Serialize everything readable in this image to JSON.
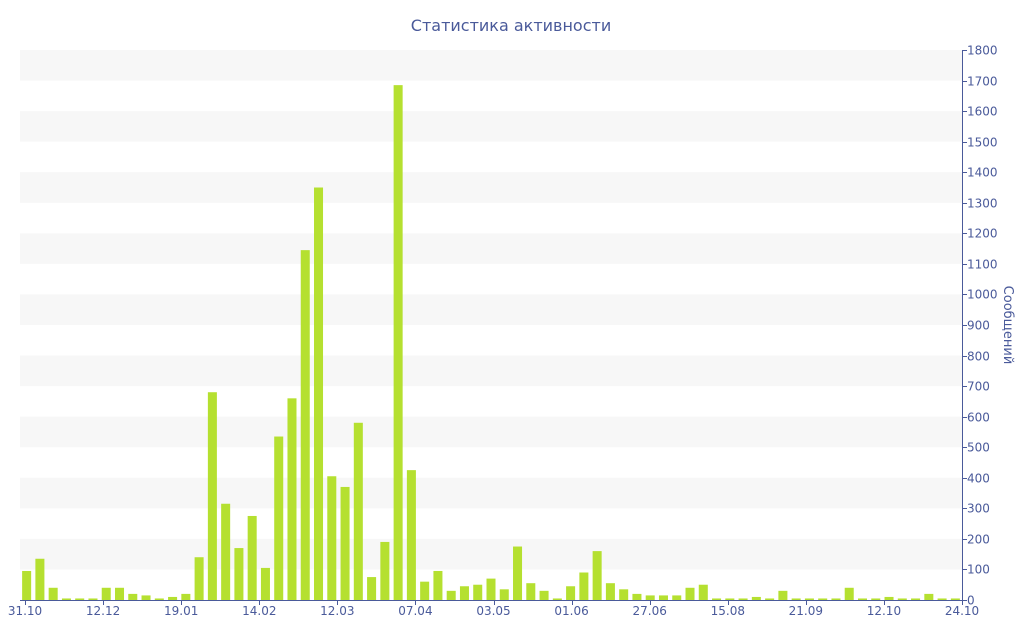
{
  "chart_data": {
    "type": "bar",
    "title": "Статистика активности",
    "ylabel": "Сообщений",
    "xlabel": "",
    "ylim": [
      0,
      1800
    ],
    "yticks": [
      0,
      100,
      200,
      300,
      400,
      500,
      600,
      700,
      800,
      900,
      1000,
      1100,
      1200,
      1300,
      1400,
      1500,
      1600,
      1700,
      1800
    ],
    "y_axis_position": "right",
    "grid": "alternating-bands",
    "xtick_labels": [
      "31.10",
      "12.12",
      "19.01",
      "14.02",
      "12.03",
      "07.04",
      "03.05",
      "01.06",
      "27.06",
      "15.08",
      "21.09",
      "12.10",
      "24.10"
    ],
    "bar_color": "#b5e030",
    "band_color": "#f7f7f7",
    "axis_color": "#4a5a9a",
    "values": [
      95,
      135,
      40,
      5,
      5,
      5,
      40,
      40,
      20,
      15,
      5,
      10,
      20,
      140,
      680,
      315,
      170,
      275,
      105,
      535,
      660,
      1145,
      1350,
      405,
      370,
      580,
      75,
      190,
      1685,
      425,
      60,
      95,
      30,
      45,
      50,
      70,
      35,
      175,
      55,
      30,
      5,
      45,
      90,
      160,
      55,
      35,
      20,
      15,
      15,
      15,
      40,
      50,
      5,
      5,
      5,
      10,
      5,
      30,
      5,
      5,
      5,
      5,
      40,
      5,
      5,
      10,
      5,
      5,
      20,
      5,
      5
    ]
  }
}
